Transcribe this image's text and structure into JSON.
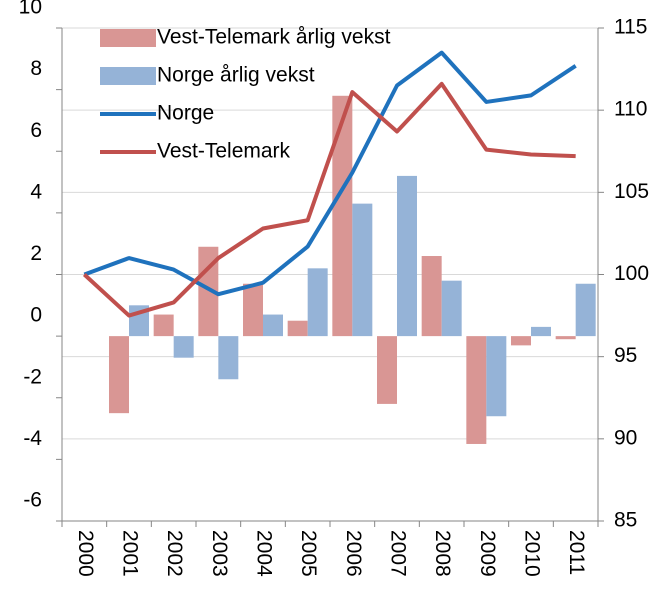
{
  "chart_data": {
    "type": "bar",
    "categories": [
      "2000",
      "2001",
      "2002",
      "2003",
      "2004",
      "2005",
      "2006",
      "2007",
      "2008",
      "2009",
      "2010",
      "2011"
    ],
    "series": [
      {
        "name": "Vest-Telemark årlig vekst",
        "type": "bar",
        "color": "#d99694",
        "values": [
          null,
          -2.5,
          0.7,
          2.9,
          1.7,
          0.5,
          7.8,
          -2.2,
          2.6,
          -3.5,
          -0.3,
          -0.1
        ]
      },
      {
        "name": "Norge årlig vekst",
        "type": "bar",
        "color": "#95b3d7",
        "values": [
          null,
          1.0,
          -0.7,
          -1.4,
          0.7,
          2.2,
          4.3,
          5.2,
          1.8,
          -2.6,
          0.3,
          1.7
        ]
      },
      {
        "name": "Norge",
        "type": "line",
        "axis": "y2",
        "color": "#1f72bd",
        "values": [
          100,
          101,
          100.3,
          98.8,
          99.5,
          101.7,
          106.2,
          111.5,
          113.5,
          110.5,
          110.9,
          112.7
        ]
      },
      {
        "name": "Vest-Telemark",
        "type": "line",
        "axis": "y2",
        "color": "#c0504d",
        "values": [
          100,
          97.5,
          98.3,
          101,
          102.8,
          103.3,
          111.1,
          108.7,
          111.6,
          107.6,
          107.3,
          107.2
        ]
      }
    ],
    "ylim": [
      -6,
      10
    ],
    "yticks": [
      -6,
      -4,
      -2,
      0,
      2,
      4,
      6,
      8,
      10
    ],
    "y2lim": [
      85,
      115
    ],
    "y2ticks": [
      85,
      90,
      95,
      100,
      105,
      110,
      115
    ],
    "grid": true,
    "legend": "top-left"
  }
}
